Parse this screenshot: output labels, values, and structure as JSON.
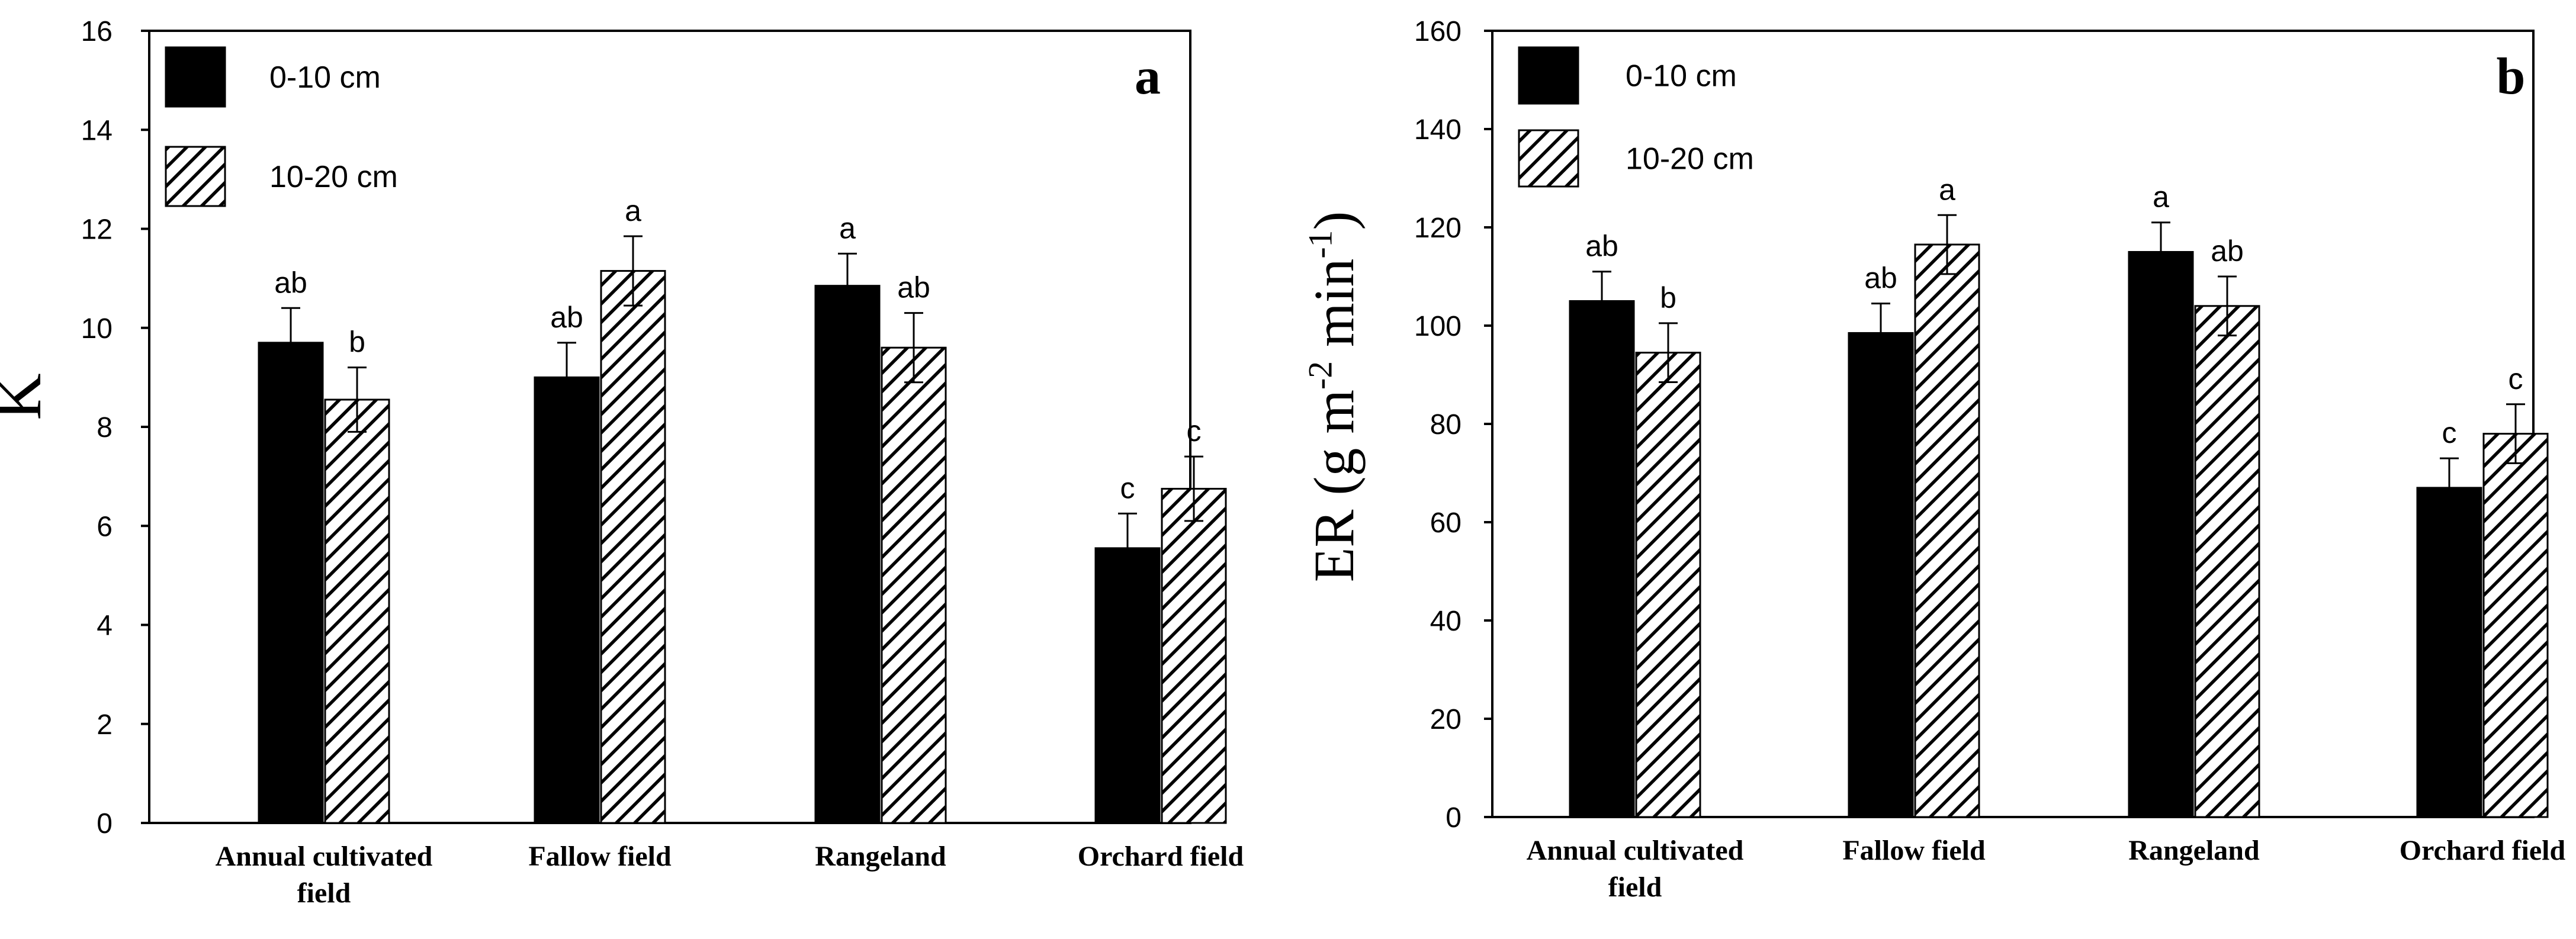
{
  "colors": {
    "series_solid": "#000000",
    "hatch_stroke": "#000000",
    "hatch_background": "#ffffff",
    "axis": "#000000"
  },
  "chart_data": [
    {
      "type": "bar",
      "panel": "a",
      "ylabel": "K",
      "ylabel_superscript": [],
      "ylim": [
        0,
        16
      ],
      "yticks": [
        0,
        2,
        4,
        6,
        8,
        10,
        12,
        14,
        16
      ],
      "grid": false,
      "legend_placement": "top-left",
      "categories": [
        "Annual cultivated field",
        "Fallow field",
        "Rangeland",
        "Orchard field"
      ],
      "category_lines": [
        [
          "Annual cultivated",
          "field"
        ],
        [
          "Fallow field"
        ],
        [
          "Rangeland"
        ],
        [
          "Orchard field"
        ]
      ],
      "series": [
        {
          "name": "0-10 cm",
          "fill": "solid",
          "values": [
            9.7,
            9.0,
            10.85,
            5.55
          ],
          "errors": [
            0.7,
            0.7,
            0.65,
            0.7
          ],
          "labels": [
            "ab",
            "ab",
            "a",
            "c"
          ]
        },
        {
          "name": "10-20 cm",
          "fill": "hatched",
          "values": [
            8.55,
            11.15,
            9.6,
            6.75
          ],
          "errors": [
            0.65,
            0.7,
            0.7,
            0.65
          ],
          "labels": [
            "b",
            "a",
            "ab",
            "c"
          ]
        }
      ]
    },
    {
      "type": "bar",
      "panel": "b",
      "ylabel": "ER (g m",
      "ylabel_superscript": [
        {
          "sup": "-2",
          "after": " min"
        },
        {
          "sup": "-1",
          "after": ")"
        }
      ],
      "ylim": [
        0,
        160
      ],
      "yticks": [
        0,
        20,
        40,
        60,
        80,
        100,
        120,
        140,
        160
      ],
      "grid": false,
      "legend_placement": "top-left",
      "categories": [
        "Annual cultivated field",
        "Fallow field",
        "Rangeland",
        "Orchard field"
      ],
      "category_lines": [
        [
          "Annual cultivated",
          "field"
        ],
        [
          "Fallow field"
        ],
        [
          "Rangeland"
        ],
        [
          "Orchard field"
        ]
      ],
      "series": [
        {
          "name": "0-10 cm",
          "fill": "solid",
          "values": [
            105,
            98.5,
            115,
            67
          ],
          "errors": [
            6,
            6,
            6,
            6
          ],
          "labels": [
            "ab",
            "ab",
            "a",
            "c"
          ]
        },
        {
          "name": "10-20 cm",
          "fill": "hatched",
          "values": [
            94.5,
            116.5,
            104,
            78
          ],
          "errors": [
            6,
            6,
            6,
            6
          ],
          "labels": [
            "b",
            "a",
            "ab",
            "c"
          ]
        }
      ]
    }
  ]
}
